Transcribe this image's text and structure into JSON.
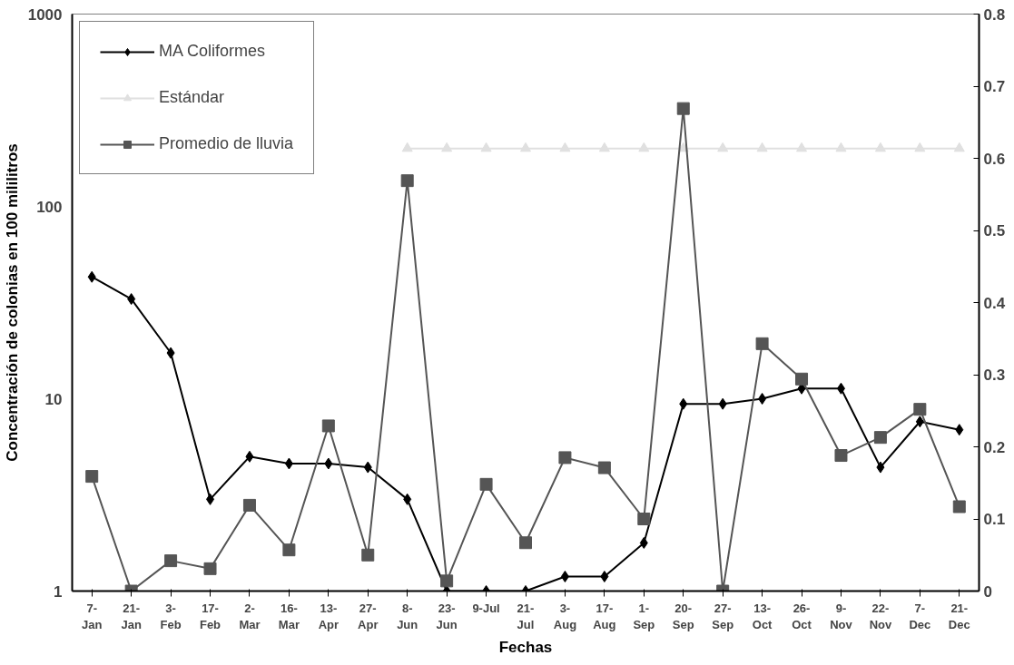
{
  "chart_data": {
    "type": "line",
    "xlabel": "Fechas",
    "ylabel": "Concentración de colonias en 100 mililitros",
    "categories": [
      "7-\nJan",
      "21-\nJan",
      "3-\nFeb",
      "17-\nFeb",
      "2-\nMar",
      "16-\nMar",
      "13-\nApr",
      "27-\nApr",
      "8-\nJun",
      "23-\nJun",
      "9-Jul",
      "21-\nJul",
      "3-\nAug",
      "17-\nAug",
      "1-\nSep",
      "20-\nSep",
      "27-\nSep",
      "13-\nOct",
      "26-\nOct",
      "9-\nNov",
      "22-\nNov",
      "7-\nDec",
      "21-\nDec"
    ],
    "series": [
      {
        "name": "MA Coliformes",
        "color": "#000000",
        "marker": "diamond",
        "values": [
          43,
          33,
          17.3,
          3.0,
          5.0,
          4.6,
          4.6,
          4.4,
          3.0,
          1,
          1,
          1,
          1.19,
          1.19,
          1.78,
          9.4,
          9.4,
          10,
          11.3,
          11.3,
          4.4,
          7.6,
          6.9
        ]
      },
      {
        "name": "Estándar",
        "color": "#e0e0e0",
        "marker": "triangle",
        "values": [
          null,
          null,
          null,
          null,
          null,
          null,
          null,
          null,
          200,
          200,
          200,
          200,
          200,
          200,
          200,
          200,
          200,
          200,
          200,
          200,
          200,
          200,
          200
        ]
      },
      {
        "name": "Promedio de lluvia",
        "color": "#555555",
        "marker": "square",
        "axis": "y2",
        "values": [
          0.159,
          0,
          0.042,
          0.031,
          0.119,
          0.057,
          0.229,
          0.05,
          0.569,
          0.014,
          0.148,
          0.067,
          0.185,
          0.171,
          0.1,
          0.669,
          0,
          0.343,
          0.294,
          0.188,
          0.213,
          0.252,
          0.117
        ]
      }
    ],
    "log": "y",
    "ylim": [
      1,
      1000
    ],
    "yticks": [
      1,
      10,
      100,
      1000
    ],
    "y2lim": [
      0,
      0.8
    ],
    "y2ticks": [
      0,
      0.1,
      0.2,
      0.3,
      0.4,
      0.5,
      0.6,
      0.7,
      0.8
    ],
    "grid": false,
    "legend": "top left"
  }
}
